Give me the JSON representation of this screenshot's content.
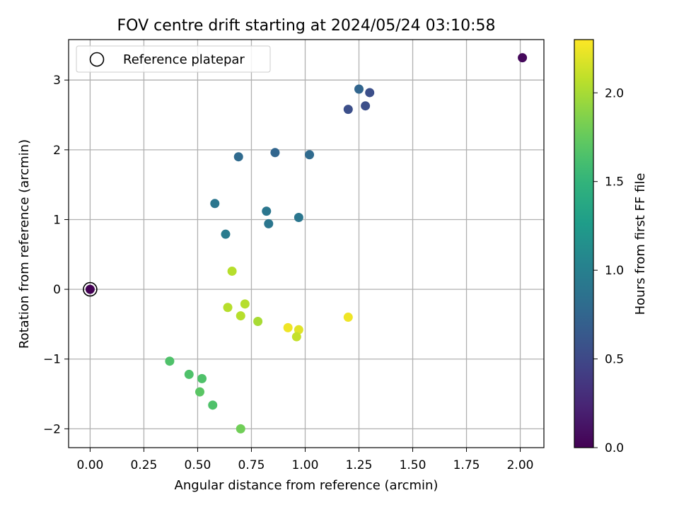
{
  "chart_data": {
    "type": "scatter",
    "title": "FOV centre drift starting at 2024/05/24 03:10:58",
    "xlabel": "Angular distance from reference (arcmin)",
    "ylabel": "Rotation from reference (arcmin)",
    "xlim": [
      -0.1,
      2.11
    ],
    "ylim": [
      -2.27,
      3.58
    ],
    "xticks": [
      0.0,
      0.25,
      0.5,
      0.75,
      1.0,
      1.25,
      1.5,
      1.75,
      2.0
    ],
    "xtick_labels": [
      "0.00",
      "0.25",
      "0.50",
      "0.75",
      "1.00",
      "1.25",
      "1.50",
      "1.75",
      "2.00"
    ],
    "yticks": [
      -2,
      -1,
      0,
      1,
      2,
      3
    ],
    "ytick_labels": [
      "−2",
      "−1",
      "0",
      "1",
      "2",
      "3"
    ],
    "grid": true,
    "legend": {
      "placement": "top-left",
      "entries": [
        "Reference platepar"
      ]
    },
    "colorbar": {
      "label": "Hours from first FF file",
      "range": [
        0.0,
        2.3
      ],
      "ticks": [
        0.0,
        0.5,
        1.0,
        1.5,
        2.0
      ],
      "tick_labels": [
        "0.0",
        "0.5",
        "1.0",
        "1.5",
        "2.0"
      ],
      "colormap": "viridis"
    },
    "reference_point": {
      "x": 0.0,
      "y": 0.0,
      "hours": 0.0
    },
    "points": [
      {
        "x": 2.01,
        "y": 3.32,
        "hours": 0.05
      },
      {
        "x": 1.25,
        "y": 2.87,
        "hours": 0.75
      },
      {
        "x": 1.3,
        "y": 2.82,
        "hours": 0.55
      },
      {
        "x": 1.28,
        "y": 2.63,
        "hours": 0.55
      },
      {
        "x": 1.2,
        "y": 2.58,
        "hours": 0.55
      },
      {
        "x": 0.86,
        "y": 1.96,
        "hours": 0.75
      },
      {
        "x": 1.02,
        "y": 1.93,
        "hours": 0.8
      },
      {
        "x": 0.69,
        "y": 1.9,
        "hours": 0.8
      },
      {
        "x": 0.58,
        "y": 1.23,
        "hours": 0.9
      },
      {
        "x": 0.82,
        "y": 1.12,
        "hours": 0.9
      },
      {
        "x": 0.97,
        "y": 1.03,
        "hours": 0.9
      },
      {
        "x": 0.83,
        "y": 0.94,
        "hours": 0.9
      },
      {
        "x": 0.63,
        "y": 0.79,
        "hours": 0.95
      },
      {
        "x": 0.66,
        "y": 0.26,
        "hours": 2.05
      },
      {
        "x": 0.72,
        "y": -0.21,
        "hours": 2.05
      },
      {
        "x": 0.64,
        "y": -0.26,
        "hours": 2.05
      },
      {
        "x": 0.7,
        "y": -0.38,
        "hours": 2.05
      },
      {
        "x": 0.78,
        "y": -0.46,
        "hours": 2.0
      },
      {
        "x": 1.2,
        "y": -0.4,
        "hours": 2.25
      },
      {
        "x": 0.92,
        "y": -0.55,
        "hours": 2.25
      },
      {
        "x": 0.97,
        "y": -0.58,
        "hours": 2.2
      },
      {
        "x": 0.96,
        "y": -0.68,
        "hours": 2.1
      },
      {
        "x": 0.37,
        "y": -1.03,
        "hours": 1.65
      },
      {
        "x": 0.46,
        "y": -1.22,
        "hours": 1.65
      },
      {
        "x": 0.52,
        "y": -1.28,
        "hours": 1.65
      },
      {
        "x": 0.51,
        "y": -1.47,
        "hours": 1.7
      },
      {
        "x": 0.57,
        "y": -1.66,
        "hours": 1.65
      },
      {
        "x": 0.7,
        "y": -2.0,
        "hours": 1.8
      }
    ]
  }
}
